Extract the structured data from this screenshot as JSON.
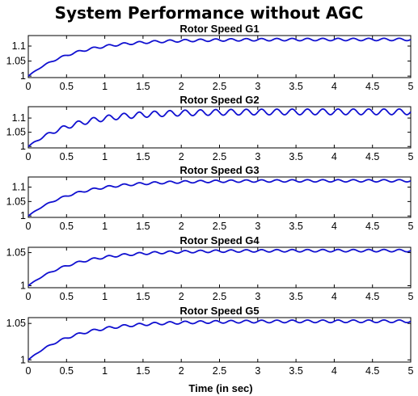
{
  "figure": {
    "title": "System Performance without AGC",
    "xlabel": "Time (in sec)"
  },
  "colors": {
    "line": "#1010d0",
    "axis": "#000000"
  },
  "chart_data": [
    {
      "type": "line",
      "title": "Rotor Speed G1",
      "xlim": [
        0,
        5
      ],
      "ylim": [
        0.995,
        1.135
      ],
      "xticks": [
        0,
        0.5,
        1,
        1.5,
        2,
        2.5,
        3,
        3.5,
        4,
        4.5,
        5
      ],
      "xticklabels": [
        "0",
        "0.5",
        "1",
        "1.5",
        "2",
        "2.5",
        "3",
        "3.5",
        "4",
        "4.5",
        "5"
      ],
      "yticks": [
        1,
        1.05,
        1.1
      ],
      "yticklabels": [
        "1",
        "1.05",
        "1.1"
      ],
      "series": [
        {
          "start": 1.0,
          "steady": 1.122,
          "time_constant": 0.6,
          "osc_amp": 0.004,
          "osc_period": 0.2
        }
      ]
    },
    {
      "type": "line",
      "title": "Rotor Speed G2",
      "xlim": [
        0,
        5
      ],
      "ylim": [
        0.995,
        1.14
      ],
      "xticks": [
        0,
        0.5,
        1,
        1.5,
        2,
        2.5,
        3,
        3.5,
        4,
        4.5,
        5
      ],
      "xticklabels": [
        "0",
        "0.5",
        "1",
        "1.5",
        "2",
        "2.5",
        "3",
        "3.5",
        "4",
        "4.5",
        "5"
      ],
      "yticks": [
        1,
        1.05,
        1.1
      ],
      "yticklabels": [
        "1",
        "1.05",
        "1.1"
      ],
      "series": [
        {
          "start": 1.0,
          "steady": 1.122,
          "time_constant": 0.6,
          "osc_amp": 0.01,
          "osc_period": 0.2
        }
      ]
    },
    {
      "type": "line",
      "title": "Rotor Speed G3",
      "xlim": [
        0,
        5
      ],
      "ylim": [
        0.995,
        1.135
      ],
      "xticks": [
        0,
        0.5,
        1,
        1.5,
        2,
        2.5,
        3,
        3.5,
        4,
        4.5,
        5
      ],
      "xticklabels": [
        "0",
        "0.5",
        "1",
        "1.5",
        "2",
        "2.5",
        "3",
        "3.5",
        "4",
        "4.5",
        "5"
      ],
      "yticks": [
        1,
        1.05,
        1.1
      ],
      "yticklabels": [
        "1",
        "1.05",
        "1.1"
      ],
      "series": [
        {
          "start": 1.0,
          "steady": 1.122,
          "time_constant": 0.6,
          "osc_amp": 0.004,
          "osc_period": 0.2
        }
      ]
    },
    {
      "type": "line",
      "title": "Rotor Speed G4",
      "xlim": [
        0,
        5
      ],
      "ylim": [
        0.997,
        1.058
      ],
      "xticks": [
        0,
        0.5,
        1,
        1.5,
        2,
        2.5,
        3,
        3.5,
        4,
        4.5,
        5
      ],
      "xticklabels": [
        "0",
        "0.5",
        "1",
        "1.5",
        "2",
        "2.5",
        "3",
        "3.5",
        "4",
        "4.5",
        "5"
      ],
      "yticks": [
        1,
        1.05
      ],
      "yticklabels": [
        "1",
        "1.05"
      ],
      "series": [
        {
          "start": 1.0,
          "steady": 1.053,
          "time_constant": 0.6,
          "osc_amp": 0.0018,
          "osc_period": 0.2
        }
      ]
    },
    {
      "type": "line",
      "title": "Rotor Speed G5",
      "xlim": [
        0,
        5
      ],
      "ylim": [
        0.997,
        1.058
      ],
      "xticks": [
        0,
        0.5,
        1,
        1.5,
        2,
        2.5,
        3,
        3.5,
        4,
        4.5,
        5
      ],
      "xticklabels": [
        "0",
        "0.5",
        "1",
        "1.5",
        "2",
        "2.5",
        "3",
        "3.5",
        "4",
        "4.5",
        "5"
      ],
      "yticks": [
        1,
        1.05
      ],
      "yticklabels": [
        "1",
        "1.05"
      ],
      "series": [
        {
          "start": 1.0,
          "steady": 1.053,
          "time_constant": 0.6,
          "osc_amp": 0.0018,
          "osc_period": 0.2
        }
      ]
    }
  ]
}
